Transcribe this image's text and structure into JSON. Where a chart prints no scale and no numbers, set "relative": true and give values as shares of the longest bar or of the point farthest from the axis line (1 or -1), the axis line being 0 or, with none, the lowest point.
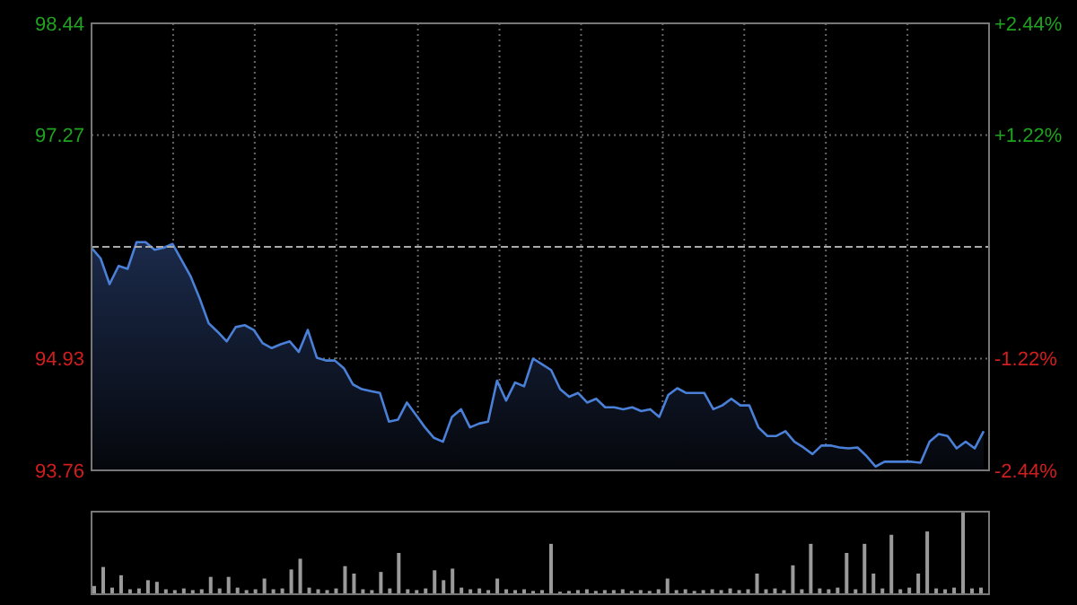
{
  "chart_data": [
    {
      "type": "area",
      "categories": [
        null,
        null,
        null,
        null,
        null,
        null,
        null,
        null,
        null,
        null,
        null,
        null,
        null,
        null,
        null,
        null,
        null,
        null,
        null,
        null,
        null,
        null,
        null,
        null,
        null,
        null,
        null,
        null,
        null,
        null,
        null,
        null,
        null,
        null,
        null,
        null,
        null,
        null,
        null,
        null,
        null,
        null,
        null,
        null,
        null,
        null,
        null,
        null,
        null,
        null,
        null,
        null,
        null,
        null,
        null,
        null,
        null,
        null,
        null,
        null,
        null,
        null,
        null,
        null,
        null,
        null,
        null,
        null,
        null,
        null,
        null,
        null,
        null,
        null,
        null,
        null,
        null,
        null,
        null,
        null,
        null,
        null,
        null,
        null,
        null,
        null,
        null,
        null,
        null,
        null,
        null,
        null,
        null,
        null,
        null,
        null,
        null,
        null,
        null,
        null
      ],
      "series": [
        {
          "color": "#4a80d8",
          "values": [
            96.09,
            95.98,
            95.71,
            95.9,
            95.87,
            96.15,
            96.15,
            96.07,
            96.09,
            96.13,
            95.96,
            95.79,
            95.56,
            95.3,
            95.21,
            95.11,
            95.26,
            95.28,
            95.23,
            95.09,
            95.04,
            95.08,
            95.11,
            95.0,
            95.23,
            94.94,
            94.91,
            94.91,
            94.83,
            94.66,
            94.61,
            94.59,
            94.57,
            94.27,
            94.29,
            94.47,
            94.34,
            94.21,
            94.1,
            94.06,
            94.32,
            94.4,
            94.21,
            94.25,
            94.27,
            94.7,
            94.49,
            94.68,
            94.64,
            94.93,
            94.87,
            94.81,
            94.61,
            94.53,
            94.57,
            94.47,
            94.51,
            94.42,
            94.42,
            94.4,
            94.42,
            94.38,
            94.4,
            94.32,
            94.55,
            94.62,
            94.57,
            94.57,
            94.57,
            94.4,
            94.44,
            94.51,
            94.44,
            94.44,
            94.21,
            94.12,
            94.12,
            94.17,
            94.06,
            94.0,
            93.93,
            94.02,
            94.02,
            94.0,
            93.99,
            94.0,
            93.91,
            93.8,
            93.85,
            93.85,
            93.85,
            93.85,
            93.84,
            94.06,
            94.14,
            94.12,
            93.99,
            94.06,
            93.99,
            94.17
          ]
        }
      ],
      "ylim": [
        93.76,
        98.44
      ],
      "yticks": [
        93.76,
        94.93,
        97.27,
        98.44
      ],
      "y2lim": [
        -2.44,
        2.44
      ],
      "y2ticks": [
        {
          "value": -2.44,
          "label": "-2.44%"
        },
        {
          "value": -1.22,
          "label": "-1.22%"
        },
        {
          "value": 1.22,
          "label": "+1.22%"
        },
        {
          "value": 2.44,
          "label": "+2.44%"
        }
      ],
      "ref_lines": [
        {
          "axis": "y",
          "value": 96.1,
          "line_style": "dashed",
          "color": "#aaaaaa"
        }
      ],
      "grid": true,
      "tick_labels": "y"
    },
    {
      "type": "bar",
      "relative": true,
      "tick_labels": false,
      "color": "#9a9a9a",
      "categories": [
        null,
        null,
        null,
        null,
        null,
        null,
        null,
        null,
        null,
        null,
        null,
        null,
        null,
        null,
        null,
        null,
        null,
        null,
        null,
        null,
        null,
        null,
        null,
        null,
        null,
        null,
        null,
        null,
        null,
        null,
        null,
        null,
        null,
        null,
        null,
        null,
        null,
        null,
        null,
        null,
        null,
        null,
        null,
        null,
        null,
        null,
        null,
        null,
        null,
        null,
        null,
        null,
        null,
        null,
        null,
        null,
        null,
        null,
        null,
        null,
        null,
        null,
        null,
        null,
        null,
        null,
        null,
        null,
        null,
        null,
        null,
        null,
        null,
        null,
        null,
        null,
        null,
        null,
        null,
        null,
        null,
        null,
        null,
        null,
        null,
        null,
        null,
        null,
        null,
        null,
        null,
        null,
        null,
        null,
        null,
        null,
        null,
        null,
        null,
        null
      ],
      "values": [
        0.1,
        0.33,
        0.08,
        0.23,
        0.06,
        0.07,
        0.17,
        0.15,
        0.06,
        0.05,
        0.07,
        0.05,
        0.06,
        0.21,
        0.07,
        0.21,
        0.08,
        0.05,
        0.06,
        0.19,
        0.06,
        0.07,
        0.3,
        0.43,
        0.08,
        0.06,
        0.05,
        0.07,
        0.34,
        0.25,
        0.06,
        0.05,
        0.27,
        0.07,
        0.5,
        0.06,
        0.05,
        0.07,
        0.29,
        0.17,
        0.31,
        0.08,
        0.06,
        0.07,
        0.05,
        0.19,
        0.06,
        0.05,
        0.06,
        0.04,
        0.05,
        0.61,
        0.03,
        0.04,
        0.05,
        0.06,
        0.04,
        0.05,
        0.05,
        0.06,
        0.04,
        0.05,
        0.04,
        0.06,
        0.19,
        0.05,
        0.06,
        0.04,
        0.05,
        0.06,
        0.05,
        0.07,
        0.05,
        0.06,
        0.25,
        0.06,
        0.07,
        0.05,
        0.35,
        0.06,
        0.61,
        0.07,
        0.06,
        0.08,
        0.5,
        0.06,
        0.61,
        0.25,
        0.07,
        0.72,
        0.06,
        0.08,
        0.25,
        0.76,
        0.07,
        0.06,
        0.08,
        1.0,
        0.07,
        0.08
      ]
    }
  ]
}
